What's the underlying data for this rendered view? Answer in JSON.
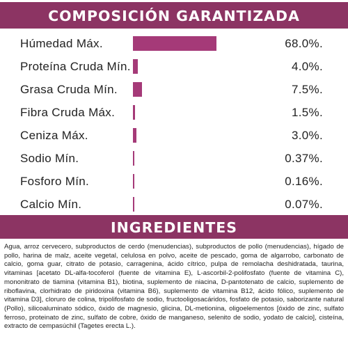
{
  "composition": {
    "title": "COMPOSICIÓN GARANTIZADA",
    "bar_color": "#a53a78",
    "rows": [
      {
        "label": "Húmedad Máx.",
        "value_text": "68.0%.",
        "percent": 68.0
      },
      {
        "label": "Proteína Cruda Mín.",
        "value_text": "4.0%.",
        "percent": 4.0
      },
      {
        "label": "Grasa Cruda Mín.",
        "value_text": "7.5%.",
        "percent": 7.5
      },
      {
        "label": "Fibra Cruda Máx.",
        "value_text": "1.5%.",
        "percent": 1.5
      },
      {
        "label": "Ceniza Máx.",
        "value_text": "3.0%.",
        "percent": 3.0
      },
      {
        "label": "Sodio Mín.",
        "value_text": "0.37%.",
        "percent": 0.37
      },
      {
        "label": "Fosforo Mín.",
        "value_text": "0.16%.",
        "percent": 0.16
      },
      {
        "label": "Calcio Mín.",
        "value_text": "0.07%.",
        "percent": 0.07
      }
    ]
  },
  "ingredients": {
    "title": "INGREDIENTES",
    "text": "Agua, arroz cervecero, subproductos de cerdo (menudencias), subproductos de pollo (menudencias), hígado de pollo, harina de malz, aceite vegetal, celulosa en polvo, aceite de pescado, goma de algarrobo, carbonato de calcio, goma guar, citrato de potasio, carragenina, ácido cítrico, pulpa de remolacha deshidratada, taurina, vitaminas [acetato DL-alfa-tocoferol (fuente de vitamina E), L-ascorbil-2-polifosfato (fuente de vitamina C), mononitrato de tiamina (vitamina B1), biotina, suplemento de niacina, D-pantotenato de calcio, suplemento de riboflavina, clorhidrato de piridoxina (vitamina B6), suplemento de vitamina B12, ácido fólico, suplemento de vitamina D3], cloruro de colina, tripolifosfato de sodio, fructooligosacáridos, fosfato de potasio, saborizante natural (Pollo), silicoaluminato sódico, óxido de magnesio, glicina, DL-metionina, oligoelementos [óxido de zinc, sulfato ferroso, proteinato de zinc, sulfato de cobre, óxido de manganeso, selenito de sodio, yodato de calcio], cisteína, extracto de cempasúchil (Tagetes erecta L.)."
  }
}
